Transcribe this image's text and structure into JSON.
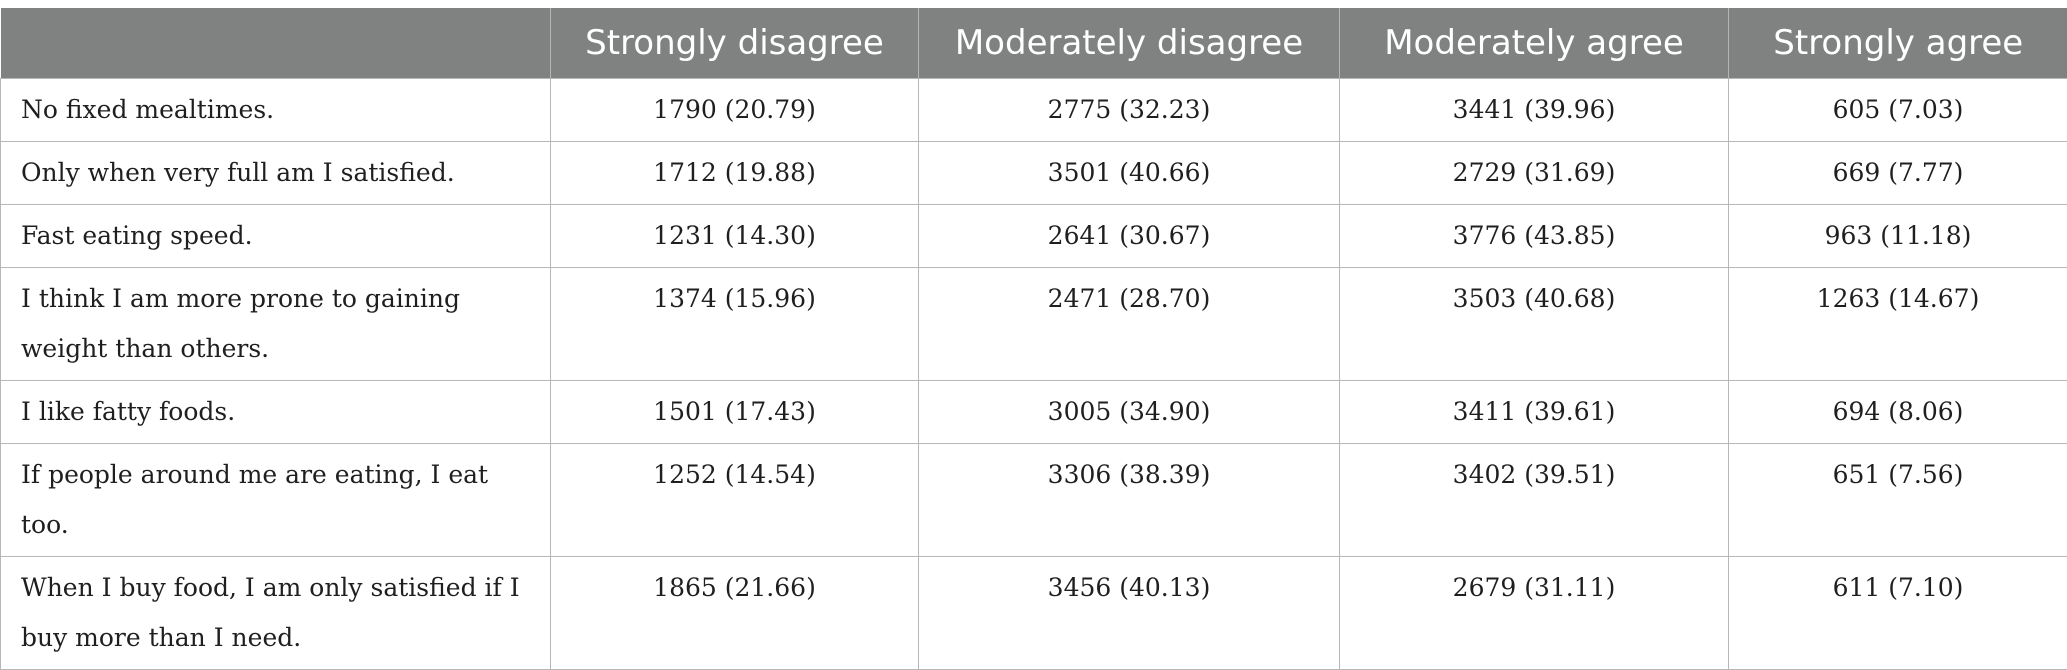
{
  "table": {
    "headers": [
      "",
      "Strongly disagree",
      "Moderately disagree",
      "Moderately agree",
      "Strongly agree"
    ],
    "rows": [
      {
        "label": "No fixed mealtimes.",
        "values": [
          "1790 (20.79)",
          "2775 (32.23)",
          "3441 (39.96)",
          "605 (7.03)"
        ]
      },
      {
        "label": "Only when very full am I satisfied.",
        "values": [
          "1712 (19.88)",
          "3501 (40.66)",
          "2729 (31.69)",
          "669 (7.77)"
        ]
      },
      {
        "label": "Fast eating speed.",
        "values": [
          "1231 (14.30)",
          "2641 (30.67)",
          "3776 (43.85)",
          "963 (11.18)"
        ]
      },
      {
        "label": "I think I am more prone to gaining weight than others.",
        "values": [
          "1374 (15.96)",
          "2471 (28.70)",
          "3503 (40.68)",
          "1263 (14.67)"
        ]
      },
      {
        "label": "I like fatty foods.",
        "values": [
          "1501 (17.43)",
          "3005 (34.90)",
          "3411 (39.61)",
          "694 (8.06)"
        ]
      },
      {
        "label": "If people around me are eating, I eat too.",
        "values": [
          "1252 (14.54)",
          "3306 (38.39)",
          "3402 (39.51)",
          "651 (7.56)"
        ]
      },
      {
        "label": "When I buy food, I am only satisfied if I buy more than I need.",
        "values": [
          "1865 (21.66)",
          "3456 (40.13)",
          "2679 (31.11)",
          "611 (7.10)"
        ]
      }
    ]
  }
}
